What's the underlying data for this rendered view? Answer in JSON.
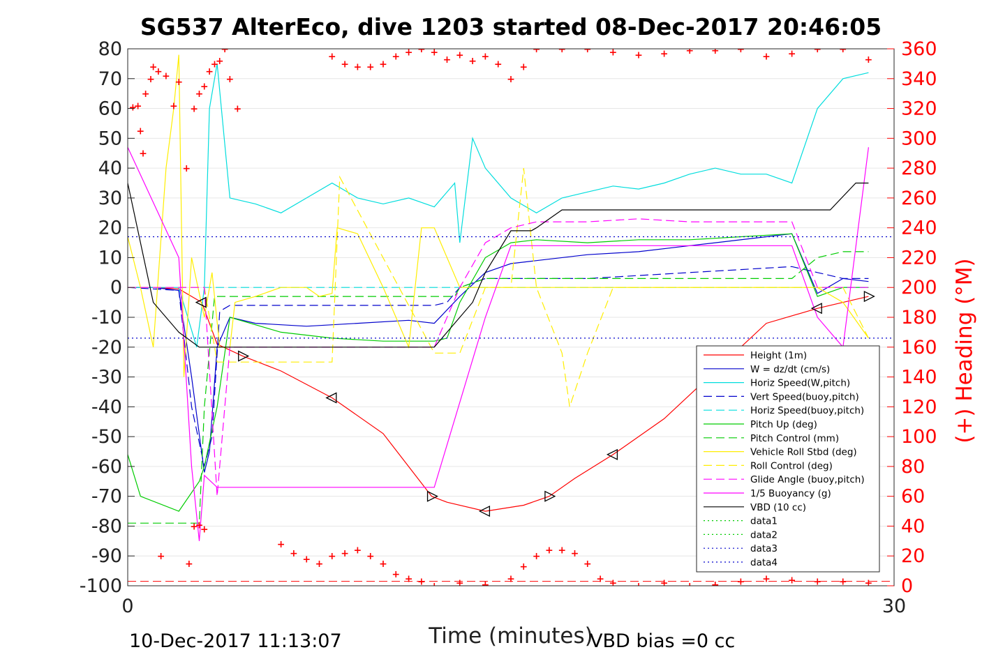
{
  "chart_data": {
    "type": "line",
    "title": "SG537 AlterEco, dive 1203 started 08-Dec-2017 20:46:05",
    "xlabel": "Time (minutes)",
    "ylabel_right": "(+) Heading (°M)",
    "xlim": [
      0,
      30
    ],
    "ylim": [
      -100,
      80
    ],
    "ylim_right": [
      0,
      360
    ],
    "xticks": [
      "0",
      "30"
    ],
    "yticks": [
      "80",
      "70",
      "60",
      "50",
      "40",
      "30",
      "20",
      "10",
      "0",
      "-10",
      "-20",
      "-30",
      "-40",
      "-50",
      "-60",
      "-70",
      "-80",
      "-90",
      "-100"
    ],
    "yticks_right": [
      "360",
      "340",
      "320",
      "300",
      "280",
      "260",
      "240",
      "220",
      "200",
      "180",
      "160",
      "140",
      "120",
      "100",
      "80",
      "60",
      "40",
      "20",
      "0"
    ],
    "footer_left": "10-Dec-2017 11:13:07",
    "footer_right": "VBD bias =0 cc",
    "legend_position": "lower-right",
    "grid": "horizontal",
    "series": [
      {
        "name": "Height (1m)",
        "color": "#ff0000",
        "style": "solid",
        "x": [
          0,
          1,
          2,
          2.9,
          3.5,
          4.5,
          6,
          8,
          10,
          11.9,
          12.5,
          14,
          15.5,
          16.5,
          17.5,
          19,
          21,
          23,
          25,
          27,
          28,
          29
        ],
        "y": [
          0,
          0,
          -0.5,
          -5,
          -19,
          -23,
          -28,
          -37,
          -49,
          -70,
          -72,
          -75,
          -73,
          -70,
          -64,
          -56,
          -44,
          -28,
          -12,
          -7,
          -5,
          -3
        ]
      },
      {
        "name": "W = dz/dt (cm/s)",
        "color": "#0000cc",
        "style": "solid",
        "x": [
          0,
          1,
          2,
          2.5,
          3,
          3.2,
          3.5,
          4,
          5,
          7,
          9,
          11,
          12,
          13,
          14,
          15,
          16,
          18,
          20,
          22,
          23,
          25,
          26,
          27,
          28,
          29
        ],
        "y": [
          0,
          0,
          -1,
          -30,
          -62,
          -55,
          -20,
          -10,
          -12,
          -13,
          -12,
          -11,
          -12,
          -3,
          5,
          8,
          9,
          11,
          12,
          14,
          15,
          17,
          18,
          -2,
          3,
          2
        ]
      },
      {
        "name": "Horiz Speed(W,pitch)",
        "color": "#00dddd",
        "style": "solid",
        "x": [
          0,
          1,
          2,
          2.7,
          3,
          3.2,
          3.5,
          4,
          5,
          6,
          7,
          8,
          9,
          10,
          11,
          12,
          12.8,
          13,
          13.5,
          14,
          15,
          16,
          17,
          18,
          19,
          20,
          21,
          22,
          23,
          24,
          25,
          26,
          27,
          28,
          29
        ],
        "y": [
          0,
          0,
          0,
          -20,
          0,
          60,
          75,
          30,
          28,
          25,
          30,
          35,
          30,
          28,
          30,
          27,
          35,
          15,
          50,
          40,
          30,
          25,
          30,
          32,
          34,
          33,
          35,
          38,
          40,
          38,
          38,
          35,
          60,
          70,
          72
        ]
      },
      {
        "name": "Vert Speed(buoy,pitch)",
        "color": "#0000cc",
        "style": "dashed",
        "x": [
          0,
          2,
          2.5,
          3,
          3.3,
          3.6,
          4,
          6,
          8,
          10,
          12,
          12.5,
          13,
          14,
          15,
          16,
          18,
          20,
          22,
          24,
          26,
          27,
          28,
          29
        ],
        "y": [
          0,
          -1,
          -40,
          -60,
          -50,
          -8,
          -6,
          -6,
          -6,
          -6,
          -6,
          -5,
          0,
          3,
          3,
          3,
          3,
          4,
          5,
          6,
          7,
          5,
          3,
          3
        ]
      },
      {
        "name": "Horiz Speed(buoy,pitch)",
        "color": "#00dddd",
        "style": "dashed",
        "x": [
          0,
          29
        ],
        "y": [
          0,
          0
        ]
      },
      {
        "name": "Pitch Up (deg)",
        "color": "#00cc00",
        "style": "solid",
        "x": [
          0,
          0.5,
          2,
          2.8,
          3,
          3.5,
          4,
          6,
          8,
          10,
          12,
          12.5,
          13,
          14,
          15,
          16,
          18,
          20,
          22,
          24,
          26,
          27,
          28,
          29
        ],
        "y": [
          -56,
          -70,
          -75,
          -65,
          -60,
          -40,
          -10,
          -15,
          -17,
          -18,
          -18,
          -17,
          -5,
          10,
          15,
          16,
          15,
          16,
          16,
          17,
          18,
          -3,
          0,
          0
        ]
      },
      {
        "name": "Pitch Control (mm)",
        "color": "#00cc00",
        "style": "dashed",
        "x": [
          0,
          0.5,
          2.8,
          3,
          3.4,
          4,
          6,
          8,
          10,
          12,
          12.8,
          13,
          14,
          15,
          16,
          18,
          20,
          22,
          24,
          26,
          27,
          28,
          29
        ],
        "y": [
          -79,
          -79,
          -79,
          -40,
          -3,
          -3,
          -3,
          -3,
          -3,
          -3,
          -3,
          0,
          3,
          3,
          3,
          3,
          3,
          3,
          3,
          3,
          10,
          12,
          12
        ]
      },
      {
        "name": "Vehicle Roll Stbd (deg)",
        "color": "#ffee00",
        "style": "solid",
        "x": [
          0,
          0.5,
          1,
          1.5,
          1.8,
          2,
          2.2,
          2.5,
          3,
          3.3,
          3.6,
          4,
          4.2,
          5,
          6,
          6.2,
          7,
          7.5,
          8,
          8.2,
          9,
          10,
          10.5,
          11,
          11.5,
          12,
          13,
          14,
          15,
          16,
          18,
          20,
          22,
          24,
          26,
          27,
          28,
          29
        ],
        "y": [
          17,
          0,
          -20,
          40,
          60,
          78,
          -30,
          10,
          -10,
          5,
          -20,
          -20,
          -5,
          -3,
          0,
          0,
          0,
          -3,
          -2,
          20,
          18,
          0,
          -10,
          -20,
          20,
          20,
          0,
          0,
          0,
          0,
          0,
          0,
          0,
          0,
          0,
          0,
          -5,
          -17
        ]
      },
      {
        "name": "Roll Control (deg)",
        "color": "#ffee00",
        "style": "dashed",
        "x": [
          0,
          3,
          3.5,
          4,
          8,
          8.3,
          12,
          13,
          14,
          15,
          15.5,
          16,
          17,
          17.3,
          18,
          19,
          25,
          26,
          28,
          29
        ],
        "y": [
          0,
          0,
          -25,
          -25,
          -25,
          37,
          -22,
          -22,
          0,
          0,
          40,
          0,
          -22,
          -40,
          -22,
          0,
          0,
          0,
          0,
          -17
        ]
      },
      {
        "name": "Glide Angle (buoy,pitch)",
        "color": "#ff00ff",
        "style": "dashed",
        "x": [
          0,
          3,
          3.5,
          4,
          6,
          8,
          10,
          12,
          13,
          14,
          15,
          16,
          18,
          20,
          22,
          24,
          26,
          27,
          28,
          29
        ],
        "y": [
          0,
          0,
          -70,
          -20,
          -20,
          -20,
          -20,
          -20,
          0,
          15,
          20,
          22,
          22,
          23,
          22,
          22,
          22,
          0,
          0,
          0
        ]
      },
      {
        "name": "1/5 Buoyancy (g)",
        "color": "#ff00ff",
        "style": "solid",
        "x": [
          0,
          2,
          2.5,
          2.8,
          3,
          3.5,
          12,
          14,
          15,
          16,
          20,
          24,
          26,
          27,
          28,
          29
        ],
        "y": [
          47,
          10,
          -60,
          -85,
          -63,
          -67,
          -67,
          -10,
          14,
          14,
          14,
          14,
          14,
          -10,
          -20,
          47
        ]
      },
      {
        "name": "VBD (10 cc)",
        "color": "#000000",
        "style": "solid",
        "x": [
          0,
          0.5,
          1,
          2,
          2.8,
          3,
          3.5,
          6,
          10,
          12,
          12.5,
          13.5,
          14,
          15,
          15.8,
          16,
          17,
          18,
          20,
          24,
          27.5,
          28.5,
          29
        ],
        "y": [
          35,
          15,
          -5,
          -15,
          -20,
          -20,
          -20,
          -20,
          -20,
          -20,
          -15,
          -5,
          5,
          19,
          19,
          20,
          26,
          26,
          26,
          26,
          26,
          35,
          35
        ]
      },
      {
        "name": "data1",
        "color": "#00cc00",
        "style": "dotted",
        "x": [],
        "y": []
      },
      {
        "name": "data2",
        "color": "#00cc00",
        "style": "dotted",
        "x": [],
        "y": []
      },
      {
        "name": "data3",
        "color": "#0000cc",
        "style": "dotted",
        "x": [
          0,
          30
        ],
        "y": [
          17,
          17
        ]
      },
      {
        "name": "data4",
        "color": "#0000cc",
        "style": "dotted",
        "x": [
          0,
          30
        ],
        "y": [
          -17,
          -17
        ]
      }
    ],
    "heading": {
      "color": "#ff0000",
      "marker": "+",
      "points": [
        [
          0.2,
          321
        ],
        [
          0.4,
          322
        ],
        [
          0.5,
          305
        ],
        [
          0.6,
          290
        ],
        [
          0.7,
          330
        ],
        [
          0.9,
          340
        ],
        [
          1.0,
          348
        ],
        [
          1.2,
          345
        ],
        [
          1.5,
          342
        ],
        [
          1.8,
          322
        ],
        [
          2.0,
          338
        ],
        [
          2.3,
          280
        ],
        [
          2.6,
          320
        ],
        [
          2.8,
          330
        ],
        [
          3.0,
          335
        ],
        [
          3.2,
          345
        ],
        [
          3.4,
          350
        ],
        [
          3.6,
          352
        ],
        [
          3.8,
          360
        ],
        [
          4.0,
          340
        ],
        [
          4.3,
          320
        ],
        [
          1.3,
          20
        ],
        [
          2.4,
          15
        ],
        [
          2.6,
          40
        ],
        [
          2.8,
          41
        ],
        [
          3.0,
          38
        ],
        [
          6.0,
          28
        ],
        [
          6.5,
          22
        ],
        [
          7.0,
          18
        ],
        [
          7.5,
          15
        ],
        [
          8.0,
          20
        ],
        [
          8.5,
          22
        ],
        [
          9.0,
          24
        ],
        [
          9.5,
          20
        ],
        [
          10.0,
          15
        ],
        [
          10.5,
          8
        ],
        [
          11.0,
          5
        ],
        [
          11.5,
          3
        ],
        [
          12.0,
          0
        ],
        [
          13.0,
          2
        ],
        [
          14.0,
          1
        ],
        [
          15.0,
          5
        ],
        [
          15.5,
          13
        ],
        [
          16.0,
          20
        ],
        [
          16.5,
          24
        ],
        [
          17.0,
          24
        ],
        [
          17.5,
          22
        ],
        [
          18.0,
          15
        ],
        [
          18.5,
          5
        ],
        [
          19.0,
          2
        ],
        [
          20.0,
          0
        ],
        [
          21.0,
          2
        ],
        [
          22.0,
          0
        ],
        [
          23.0,
          1
        ],
        [
          24.0,
          3
        ],
        [
          25.0,
          5
        ],
        [
          26.0,
          4
        ],
        [
          27.0,
          3
        ],
        [
          28.0,
          3
        ],
        [
          29.0,
          2
        ],
        [
          8.0,
          355
        ],
        [
          8.5,
          350
        ],
        [
          9.0,
          348
        ],
        [
          9.5,
          348
        ],
        [
          10.0,
          350
        ],
        [
          10.5,
          355
        ],
        [
          11.0,
          358
        ],
        [
          11.5,
          360
        ],
        [
          12.0,
          358
        ],
        [
          12.5,
          353
        ],
        [
          13.0,
          356
        ],
        [
          13.5,
          352
        ],
        [
          14.0,
          355
        ],
        [
          14.5,
          350
        ],
        [
          15.0,
          340
        ],
        [
          15.5,
          348
        ],
        [
          16.0,
          360
        ],
        [
          17.0,
          360
        ],
        [
          18.0,
          360
        ],
        [
          19.0,
          358
        ],
        [
          20.0,
          356
        ],
        [
          21.0,
          357
        ],
        [
          22.0,
          359
        ],
        [
          23.0,
          359
        ],
        [
          24.0,
          360
        ],
        [
          25.0,
          355
        ],
        [
          26.0,
          357
        ],
        [
          27.0,
          360
        ],
        [
          28.0,
          360
        ],
        [
          29.0,
          353
        ]
      ]
    },
    "heading_ref": {
      "color": "#ff0000",
      "style": "dashed",
      "y": 3
    }
  }
}
